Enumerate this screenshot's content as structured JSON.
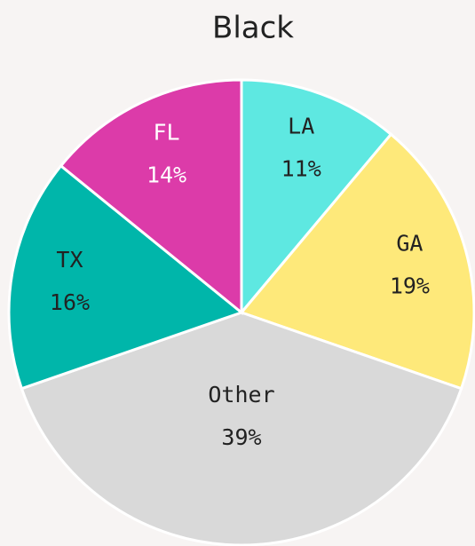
{
  "chart_data": {
    "type": "pie",
    "title": "Black",
    "categories": [
      "LA",
      "GA",
      "Other",
      "TX",
      "FL"
    ],
    "values": [
      11,
      19,
      39,
      16,
      14
    ],
    "value_labels": [
      "11%",
      "19%",
      "39%",
      "16%",
      "14%"
    ],
    "colors": [
      "#5ee8e1",
      "#fee97a",
      "#d9d9d9",
      "#00b6aa",
      "#dc3ba9"
    ],
    "label_colors": [
      "#222222",
      "#222222",
      "#222222",
      "#222222",
      "#ffffff"
    ]
  }
}
